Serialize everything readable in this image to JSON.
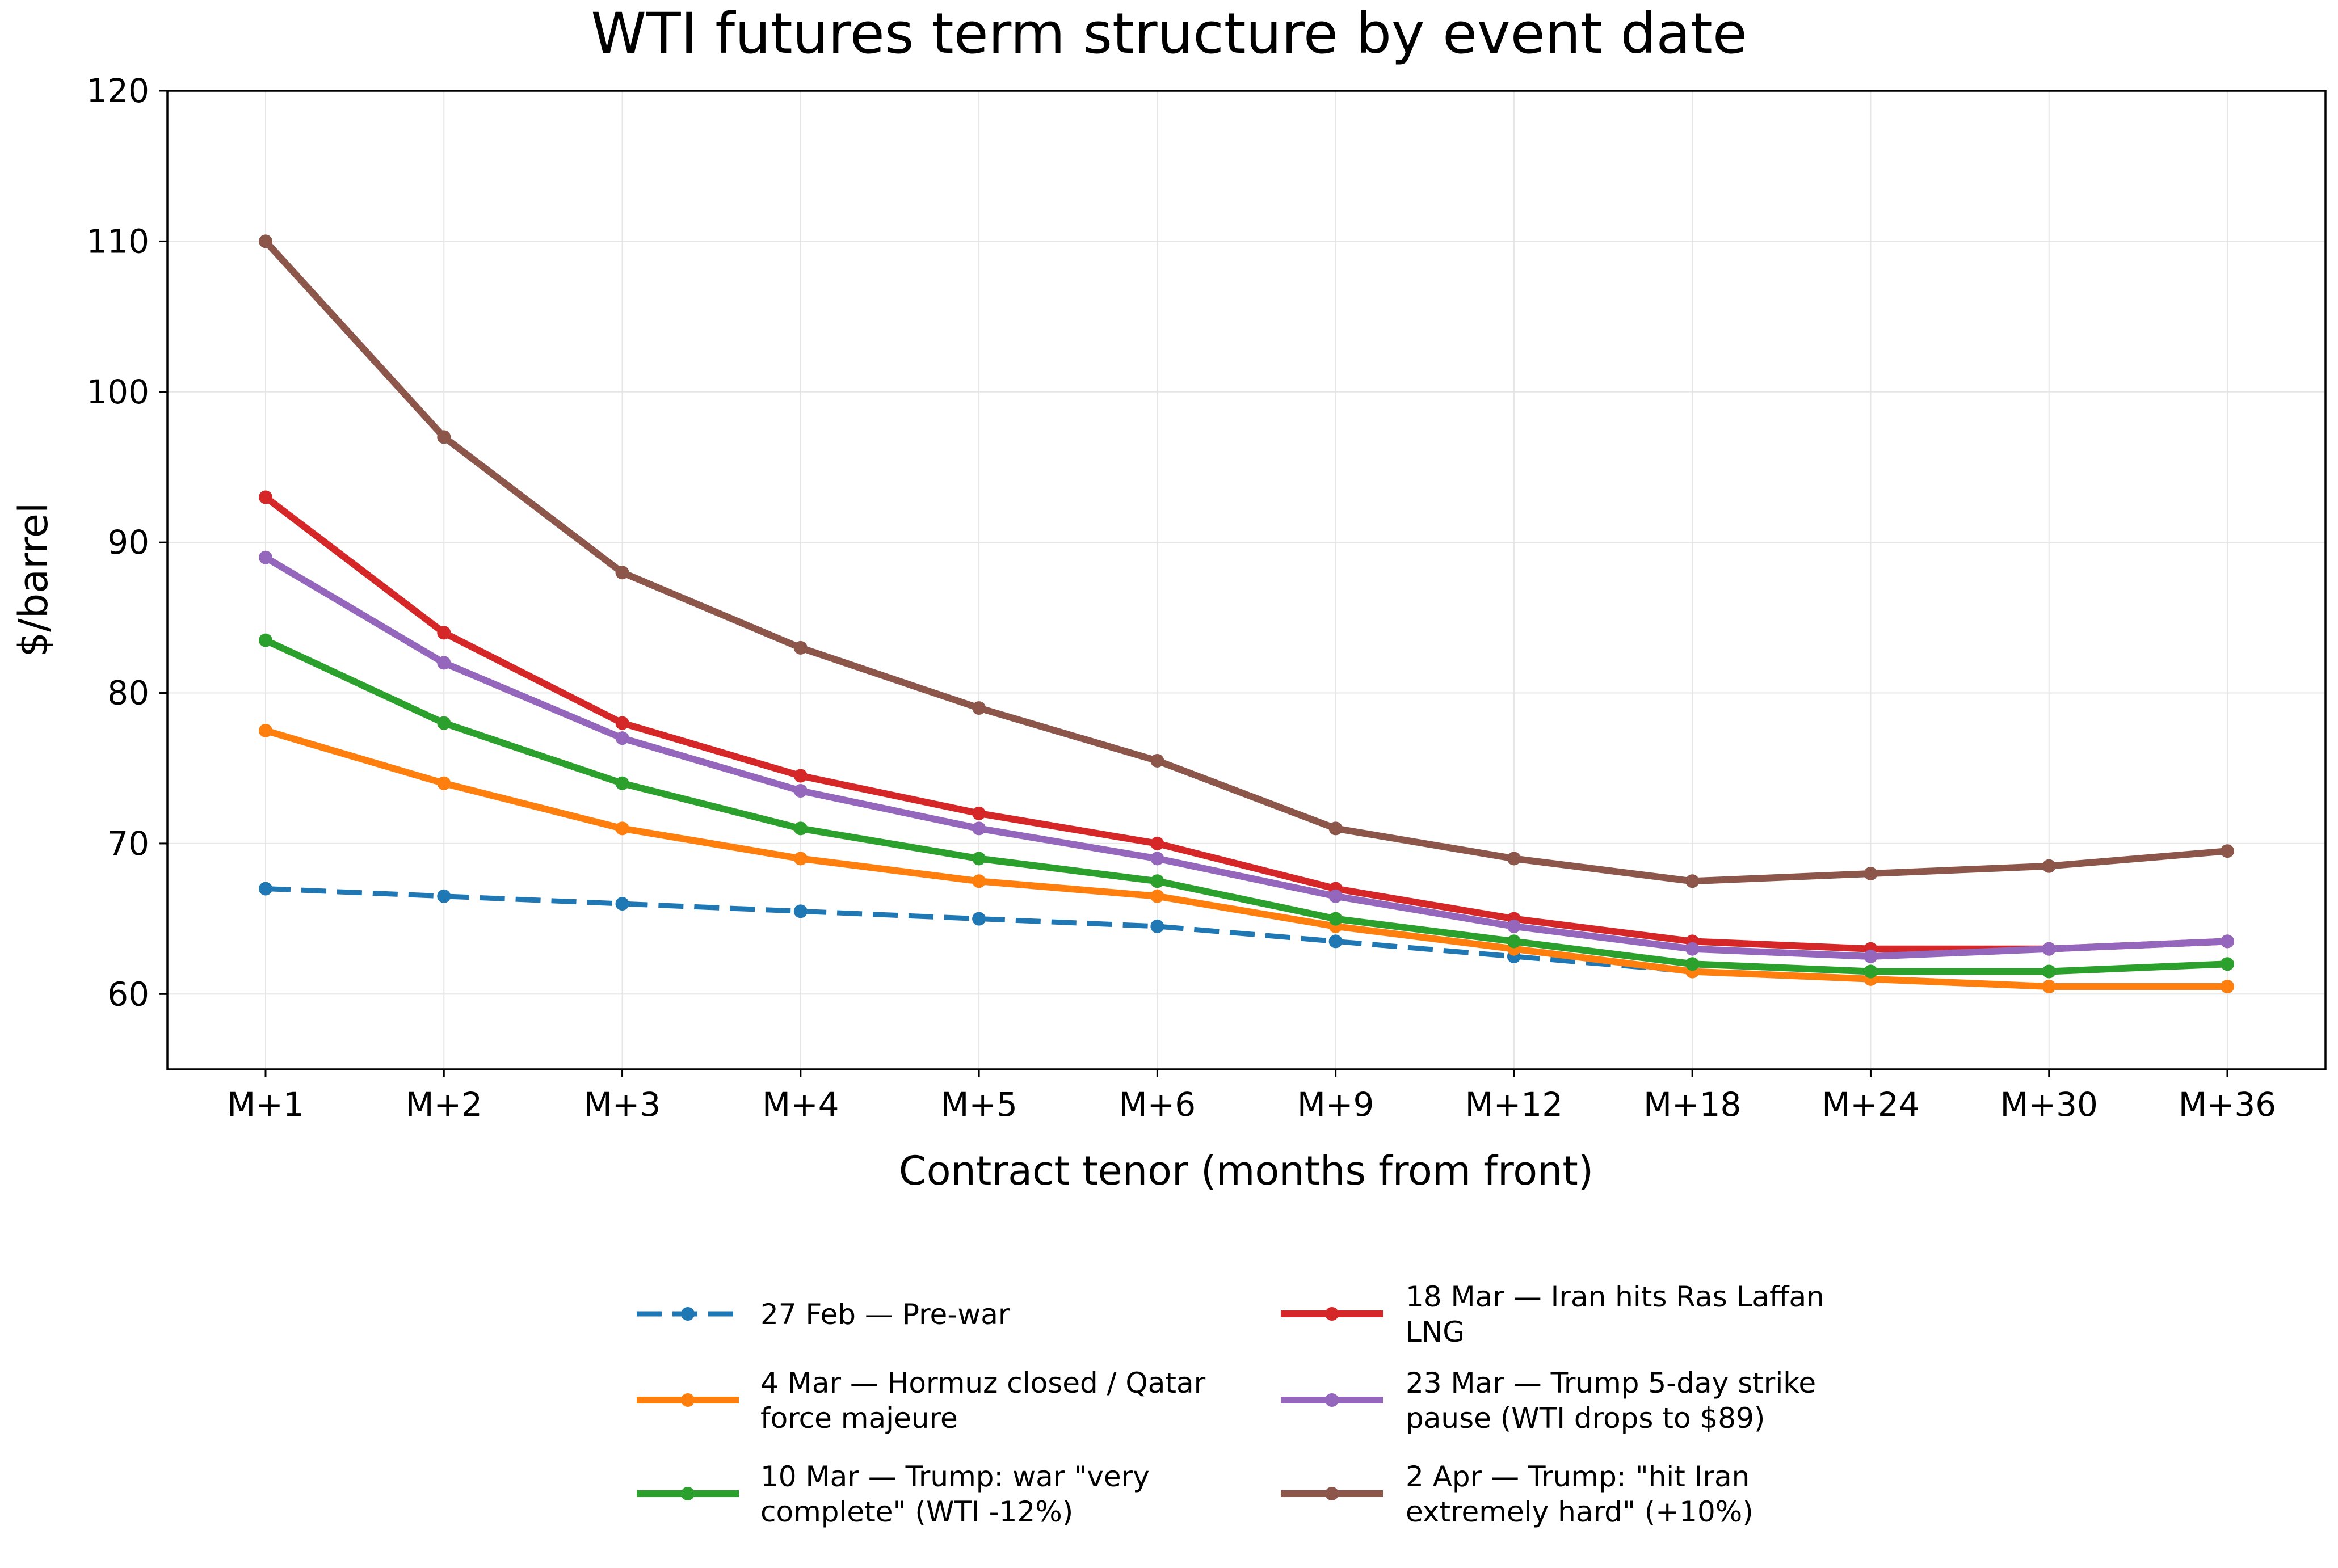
{
  "chart_data": {
    "type": "line",
    "title": "WTI futures term structure by event date",
    "xlabel": "Contract tenor (months from front)",
    "ylabel": "$/barrel",
    "ylim": [
      55,
      120
    ],
    "yticks": [
      60,
      70,
      80,
      90,
      100,
      110,
      120
    ],
    "grid": true,
    "legend_position": "bottom",
    "categories": [
      "M+1",
      "M+2",
      "M+3",
      "M+4",
      "M+5",
      "M+6",
      "M+9",
      "M+12",
      "M+18",
      "M+24",
      "M+30",
      "M+36"
    ],
    "series": [
      {
        "name": "27 Feb — Pre-war",
        "label_lines": [
          "27 Feb — Pre-war"
        ],
        "color": "#1f77b4",
        "dashed": true,
        "values": [
          67.0,
          66.5,
          66.0,
          65.5,
          65.0,
          64.5,
          63.5,
          62.5,
          61.5,
          61.0,
          60.5,
          60.5
        ]
      },
      {
        "name": "4 Mar — Hormuz closed / Qatar force majeure",
        "label_lines": [
          "4 Mar — Hormuz closed / Qatar",
          "force majeure"
        ],
        "color": "#ff7f0e",
        "dashed": false,
        "values": [
          77.5,
          74.0,
          71.0,
          69.0,
          67.5,
          66.5,
          64.5,
          63.0,
          61.5,
          61.0,
          60.5,
          60.5
        ]
      },
      {
        "name": "10 Mar — Trump: war \"very complete\" (WTI -12%)",
        "label_lines": [
          "10 Mar — Trump: war \"very",
          "complete\" (WTI -12%)"
        ],
        "color": "#2ca02c",
        "dashed": false,
        "values": [
          83.5,
          78.0,
          74.0,
          71.0,
          69.0,
          67.5,
          65.0,
          63.5,
          62.0,
          61.5,
          61.5,
          62.0
        ]
      },
      {
        "name": "18 Mar — Iran hits Ras Laffan LNG",
        "label_lines": [
          "18 Mar — Iran hits Ras Laffan",
          "LNG"
        ],
        "color": "#d62728",
        "dashed": false,
        "values": [
          93.0,
          84.0,
          78.0,
          74.5,
          72.0,
          70.0,
          67.0,
          65.0,
          63.5,
          63.0,
          63.0,
          63.5
        ]
      },
      {
        "name": "23 Mar — Trump 5-day strike pause (WTI drops to $89)",
        "label_lines": [
          "23 Mar — Trump 5-day strike",
          "pause (WTI drops to $89)"
        ],
        "color": "#9467bd",
        "dashed": false,
        "values": [
          89.0,
          82.0,
          77.0,
          73.5,
          71.0,
          69.0,
          66.5,
          64.5,
          63.0,
          62.5,
          63.0,
          63.5
        ]
      },
      {
        "name": "2 Apr — Trump: \"hit Iran extremely hard\" (+10%)",
        "label_lines": [
          "2 Apr — Trump: \"hit Iran",
          "extremely hard\" (+10%)"
        ],
        "color": "#8c564b",
        "dashed": false,
        "values": [
          110.0,
          97.0,
          88.0,
          83.0,
          79.0,
          75.5,
          71.0,
          69.0,
          67.5,
          68.0,
          68.5,
          69.5
        ]
      }
    ]
  }
}
